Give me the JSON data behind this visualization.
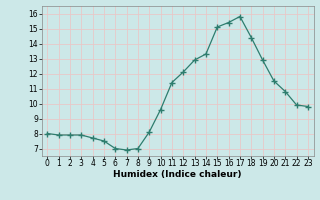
{
  "x": [
    0,
    1,
    2,
    3,
    4,
    5,
    6,
    7,
    8,
    9,
    10,
    11,
    12,
    13,
    14,
    15,
    16,
    17,
    18,
    19,
    20,
    21,
    22,
    23
  ],
  "y": [
    8.0,
    7.9,
    7.9,
    7.9,
    7.7,
    7.5,
    7.0,
    6.9,
    7.0,
    8.1,
    9.6,
    11.4,
    12.1,
    12.9,
    13.3,
    15.1,
    15.4,
    15.8,
    14.4,
    12.9,
    11.5,
    10.8,
    9.9,
    9.8
  ],
  "line_color": "#2e7d6e",
  "marker": "+",
  "marker_size": 4,
  "bg_color": "#cce8e8",
  "grid_color": "#e8c8c8",
  "xlabel": "Humidex (Indice chaleur)",
  "xlim": [
    -0.5,
    23.5
  ],
  "ylim": [
    6.5,
    16.5
  ],
  "yticks": [
    7,
    8,
    9,
    10,
    11,
    12,
    13,
    14,
    15,
    16
  ],
  "xticks": [
    0,
    1,
    2,
    3,
    4,
    5,
    6,
    7,
    8,
    9,
    10,
    11,
    12,
    13,
    14,
    15,
    16,
    17,
    18,
    19,
    20,
    21,
    22,
    23
  ],
  "label_fontsize": 6.5,
  "tick_fontsize": 5.5
}
